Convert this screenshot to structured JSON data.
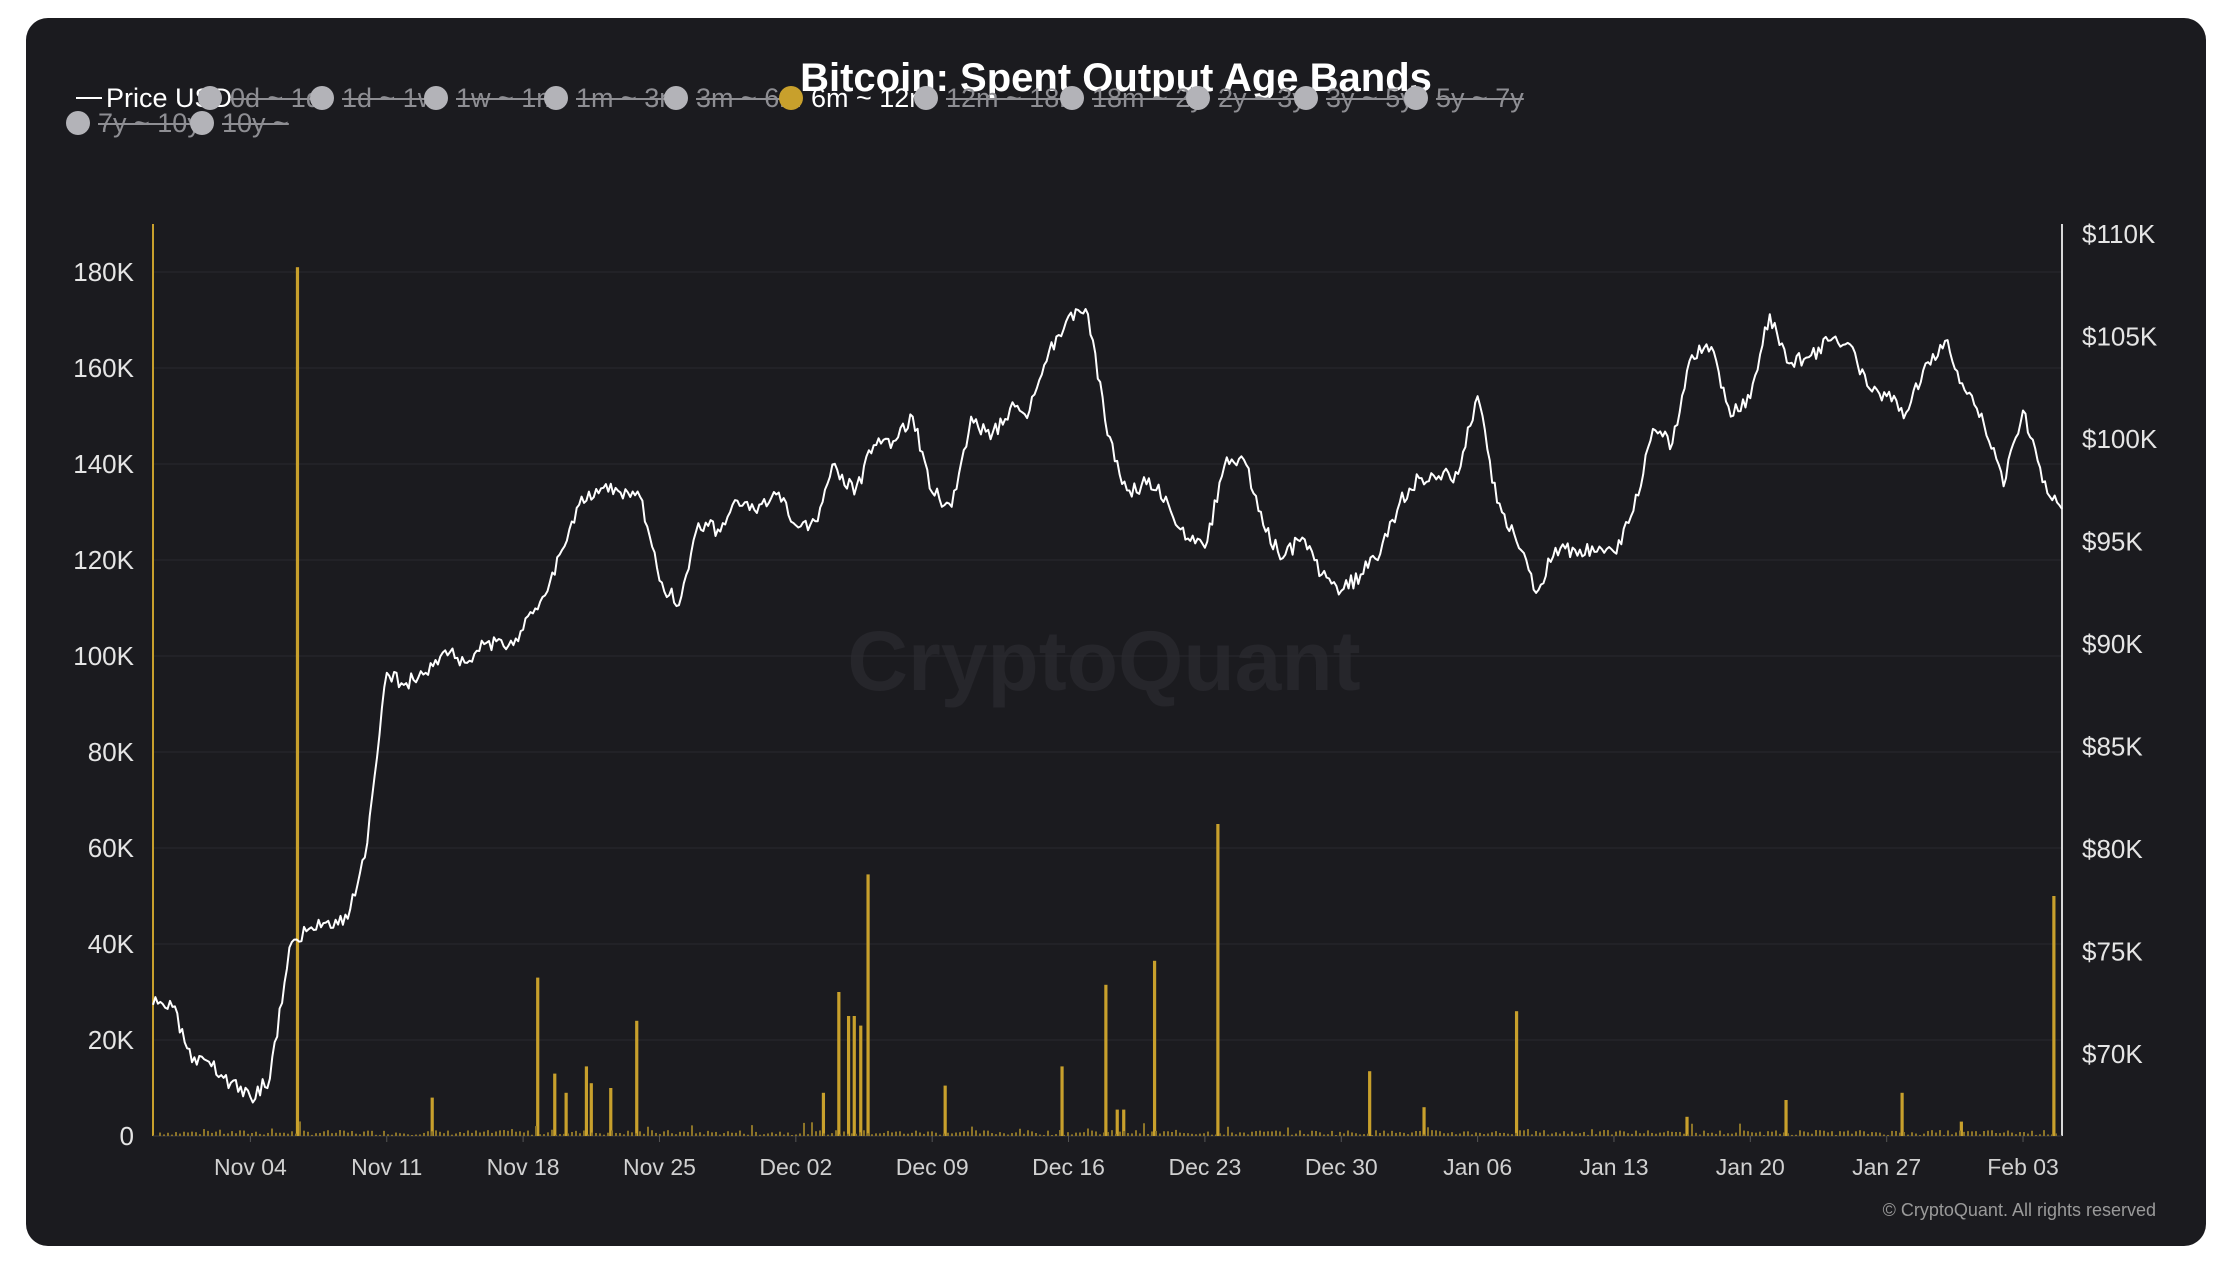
{
  "chart_data": {
    "type": "bar+line",
    "title": "Bitcoin: Spent Output Age Bands",
    "watermark": "CryptoQuant",
    "copyright": "© CryptoQuant. All rights reserved",
    "legend": [
      {
        "label": "Price USD",
        "marker": "line",
        "active": true,
        "color": "#ffffff"
      },
      {
        "label": "0d ~ 1d",
        "marker": "dot",
        "active": false,
        "color": "#b3b3b8"
      },
      {
        "label": "1d ~ 1w",
        "marker": "dot",
        "active": false,
        "color": "#b3b3b8"
      },
      {
        "label": "1w ~ 1m",
        "marker": "dot",
        "active": false,
        "color": "#b3b3b8"
      },
      {
        "label": "1m ~ 3m",
        "marker": "dot",
        "active": false,
        "color": "#b3b3b8"
      },
      {
        "label": "3m ~ 6m",
        "marker": "dot",
        "active": false,
        "color": "#b3b3b8"
      },
      {
        "label": "6m ~ 12m",
        "marker": "dot",
        "active": true,
        "color": "#c8a02c"
      },
      {
        "label": "12m ~ 18m",
        "marker": "dot",
        "active": false,
        "color": "#b3b3b8"
      },
      {
        "label": "18m ~ 2y",
        "marker": "dot",
        "active": false,
        "color": "#b3b3b8"
      },
      {
        "label": "2y ~ 3y",
        "marker": "dot",
        "active": false,
        "color": "#b3b3b8"
      },
      {
        "label": "3y ~ 5y",
        "marker": "dot",
        "active": false,
        "color": "#b3b3b8"
      },
      {
        "label": "5y ~ 7y",
        "marker": "dot",
        "active": false,
        "color": "#b3b3b8"
      },
      {
        "label": "7y ~ 10y",
        "marker": "dot",
        "active": false,
        "color": "#b3b3b8"
      },
      {
        "label": "10y ~",
        "marker": "dot",
        "active": false,
        "color": "#b3b3b8"
      }
    ],
    "x_ticks": [
      "Nov 04",
      "Nov 11",
      "Nov 18",
      "Nov 25",
      "Dec 02",
      "Dec 09",
      "Dec 16",
      "Dec 23",
      "Dec 30",
      "Jan 06",
      "Jan 13",
      "Jan 20",
      "Jan 27",
      "Feb 03"
    ],
    "x_range": [
      "2024-10-30",
      "2025-02-05"
    ],
    "y_left": {
      "ticks": [
        "0",
        "20K",
        "40K",
        "60K",
        "80K",
        "100K",
        "120K",
        "140K",
        "160K",
        "180K"
      ],
      "range": [
        0,
        190000
      ]
    },
    "y_right": {
      "ticks": [
        "$70K",
        "$75K",
        "$80K",
        "$85K",
        "$90K",
        "$95K",
        "$100K",
        "$105K",
        "$110K"
      ],
      "values": [
        70000,
        75000,
        80000,
        85000,
        90000,
        95000,
        100000,
        105000,
        110000
      ],
      "range": [
        66000,
        110500
      ]
    },
    "series": [
      {
        "name": "6m ~ 12m",
        "type": "bar",
        "axis": "left",
        "color": "#c8a02c",
        "points": [
          [
            "2024-11-06T10:00",
            181000
          ],
          [
            "2024-11-13T08:00",
            8000
          ],
          [
            "2024-11-18T18:00",
            33000
          ],
          [
            "2024-11-19T15:00",
            13000
          ],
          [
            "2024-11-20T05:00",
            9000
          ],
          [
            "2024-11-21T06:00",
            14500
          ],
          [
            "2024-11-21T12:00",
            11000
          ],
          [
            "2024-11-22T12:00",
            10000
          ],
          [
            "2024-11-23T20:00",
            24000
          ],
          [
            "2024-12-03T10:00",
            9000
          ],
          [
            "2024-12-04T05:00",
            30000
          ],
          [
            "2024-12-04T17:00",
            25000
          ],
          [
            "2024-12-05T00:00",
            25000
          ],
          [
            "2024-12-05T08:00",
            23000
          ],
          [
            "2024-12-05T17:00",
            54500
          ],
          [
            "2024-12-09T16:00",
            10500
          ],
          [
            "2024-12-15T16:00",
            14500
          ],
          [
            "2024-12-17T22:00",
            31500
          ],
          [
            "2024-12-18T12:00",
            5500
          ],
          [
            "2024-12-18T20:00",
            5500
          ],
          [
            "2024-12-20T10:00",
            36500
          ],
          [
            "2024-12-23T16:00",
            65000
          ],
          [
            "2024-12-31T11:00",
            13500
          ],
          [
            "2025-01-03T06:00",
            6000
          ],
          [
            "2025-01-08T00:00",
            26000
          ],
          [
            "2025-01-16T18:00",
            4000
          ],
          [
            "2025-01-21T20:00",
            7500
          ],
          [
            "2025-01-27T19:00",
            9000
          ],
          [
            "2025-01-30T20:00",
            3000
          ],
          [
            "2025-02-04T14:00",
            50000
          ]
        ]
      },
      {
        "name": "Price USD",
        "type": "line",
        "axis": "right",
        "color": "#ffffff",
        "points": [
          [
            "2024-10-30",
            72400
          ],
          [
            "2024-10-31",
            72300
          ],
          [
            "2024-11-01",
            69600
          ],
          [
            "2024-11-02",
            69400
          ],
          [
            "2024-11-03",
            68600
          ],
          [
            "2024-11-04",
            67900
          ],
          [
            "2024-11-05",
            68800
          ],
          [
            "2024-11-06",
            75200
          ],
          [
            "2024-11-07",
            76100
          ],
          [
            "2024-11-08",
            76500
          ],
          [
            "2024-11-09",
            76600
          ],
          [
            "2024-11-10",
            80300
          ],
          [
            "2024-11-11",
            88600
          ],
          [
            "2024-11-12",
            88100
          ],
          [
            "2024-11-13",
            88600
          ],
          [
            "2024-11-14",
            89700
          ],
          [
            "2024-11-15",
            89100
          ],
          [
            "2024-11-16",
            90000
          ],
          [
            "2024-11-17",
            89900
          ],
          [
            "2024-11-18",
            90700
          ],
          [
            "2024-11-19",
            92300
          ],
          [
            "2024-11-20",
            94600
          ],
          [
            "2024-11-21",
            97200
          ],
          [
            "2024-11-22",
            97600
          ],
          [
            "2024-11-23",
            97400
          ],
          [
            "2024-11-24",
            97200
          ],
          [
            "2024-11-25",
            93100
          ],
          [
            "2024-11-26",
            91900
          ],
          [
            "2024-11-27",
            95900
          ],
          [
            "2024-11-28",
            95600
          ],
          [
            "2024-11-29",
            97000
          ],
          [
            "2024-11-30",
            96400
          ],
          [
            "2024-12-01",
            97300
          ],
          [
            "2024-12-02",
            95800
          ],
          [
            "2024-12-03",
            96000
          ],
          [
            "2024-12-04",
            98800
          ],
          [
            "2024-12-05",
            97300
          ],
          [
            "2024-12-06",
            99700
          ],
          [
            "2024-12-07",
            99900
          ],
          [
            "2024-12-08",
            101100
          ],
          [
            "2024-12-09",
            97400
          ],
          [
            "2024-12-10",
            96700
          ],
          [
            "2024-12-11",
            101100
          ],
          [
            "2024-12-12",
            100000
          ],
          [
            "2024-12-13",
            101500
          ],
          [
            "2024-12-14",
            101400
          ],
          [
            "2024-12-15",
            104300
          ],
          [
            "2024-12-16",
            106000
          ],
          [
            "2024-12-17",
            106100
          ],
          [
            "2024-12-18",
            100200
          ],
          [
            "2024-12-19",
            97500
          ],
          [
            "2024-12-20",
            97800
          ],
          [
            "2024-12-21",
            97200
          ],
          [
            "2024-12-22",
            95100
          ],
          [
            "2024-12-23",
            94700
          ],
          [
            "2024-12-24",
            98700
          ],
          [
            "2024-12-25",
            99000
          ],
          [
            "2024-12-26",
            95800
          ],
          [
            "2024-12-27",
            94200
          ],
          [
            "2024-12-28",
            95200
          ],
          [
            "2024-12-29",
            93400
          ],
          [
            "2024-12-30",
            92600
          ],
          [
            "2024-12-31",
            93400
          ],
          [
            "2025-01-01",
            94400
          ],
          [
            "2025-01-02",
            96900
          ],
          [
            "2025-01-03",
            98100
          ],
          [
            "2025-01-04",
            98200
          ],
          [
            "2025-01-05",
            98300
          ],
          [
            "2025-01-06",
            102100
          ],
          [
            "2025-01-07",
            96900
          ],
          [
            "2025-01-08",
            95000
          ],
          [
            "2025-01-09",
            92500
          ],
          [
            "2025-01-10",
            94700
          ],
          [
            "2025-01-11",
            94600
          ],
          [
            "2025-01-12",
            94500
          ],
          [
            "2025-01-13",
            94500
          ],
          [
            "2025-01-14",
            96500
          ],
          [
            "2025-01-15",
            100500
          ],
          [
            "2025-01-16",
            99800
          ],
          [
            "2025-01-17",
            104100
          ],
          [
            "2025-01-18",
            104500
          ],
          [
            "2025-01-19",
            101100
          ],
          [
            "2025-01-20",
            102000
          ],
          [
            "2025-01-21",
            106100
          ],
          [
            "2025-01-22",
            103700
          ],
          [
            "2025-01-23",
            104000
          ],
          [
            "2025-01-24",
            104800
          ],
          [
            "2025-01-25",
            104700
          ],
          [
            "2025-01-26",
            102600
          ],
          [
            "2025-01-27",
            102100
          ],
          [
            "2025-01-28",
            101300
          ],
          [
            "2025-01-29",
            103700
          ],
          [
            "2025-01-30",
            104800
          ],
          [
            "2025-01-31",
            102400
          ],
          [
            "2025-02-01",
            100700
          ],
          [
            "2025-02-02",
            97700
          ],
          [
            "2025-02-03",
            101400
          ],
          [
            "2025-02-04",
            97900
          ],
          [
            "2025-02-05",
            96600
          ]
        ]
      }
    ]
  }
}
